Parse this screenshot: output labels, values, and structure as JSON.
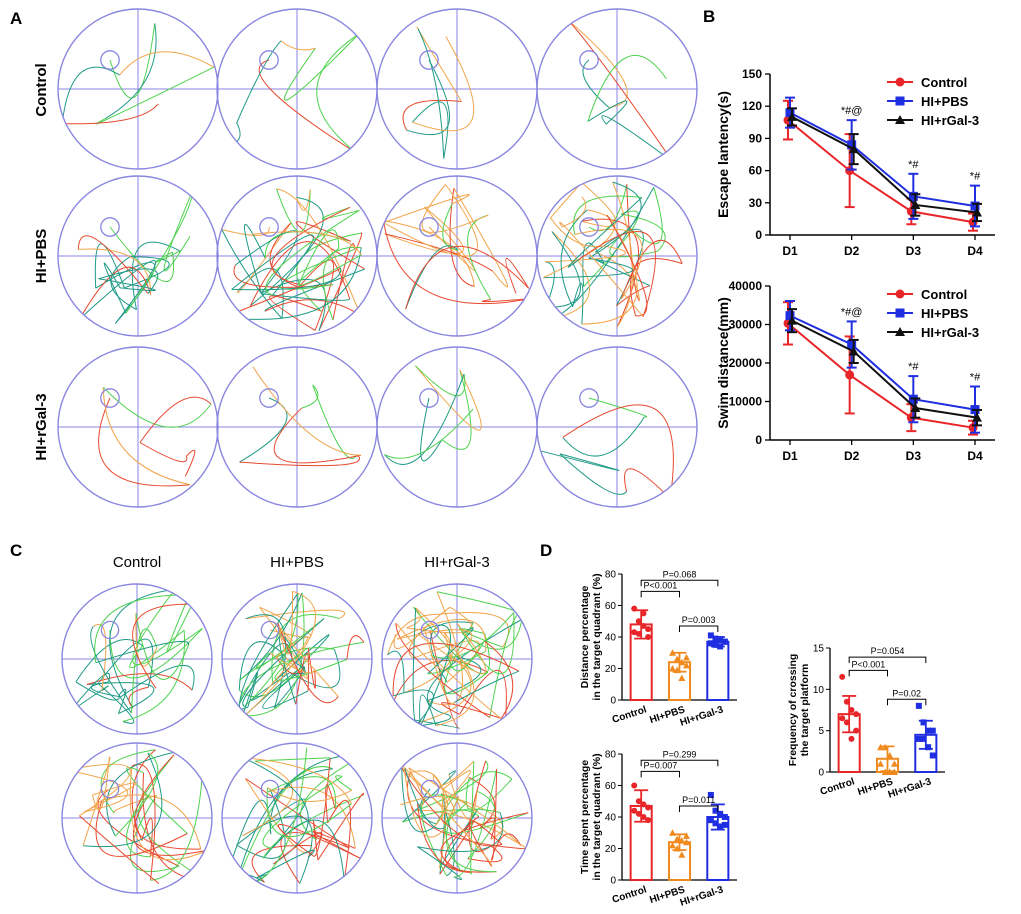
{
  "panels": {
    "A": {
      "label": "A",
      "row_labels": [
        "Control",
        "HI+PBS",
        "HI+rGal-3"
      ]
    },
    "C": {
      "label": "C",
      "col_labels": [
        "Control",
        "HI+PBS",
        "HI+rGal-3"
      ]
    },
    "B": {
      "label": "B"
    },
    "D": {
      "label": "D"
    }
  },
  "colors": {
    "control": "#e8262a",
    "pbs": "#1f2ee0",
    "rgal": "#111111",
    "pbs_bar": "#f08a1e",
    "pool_border": "#8a86e0",
    "quad_green": "#4ed24e",
    "quad_orange": "#f2a54a",
    "quad_teal": "#1f9a86",
    "quad_red": "#e8482f"
  },
  "chart_data": [
    {
      "id": "escape-latency",
      "type": "line",
      "categories": [
        "D1",
        "D2",
        "D3",
        "D4"
      ],
      "ylabel": "Escape lantency(s)",
      "ylim": [
        0,
        150
      ],
      "yticks": [
        "0",
        "30",
        "60",
        "90",
        "120",
        "150"
      ],
      "series": [
        {
          "name": "Control",
          "values": [
            107,
            60,
            22,
            12
          ],
          "err": [
            18,
            34,
            12,
            8
          ],
          "marker": "circle",
          "color_key": "control"
        },
        {
          "name": "HI+PBS",
          "values": [
            114,
            84,
            36,
            27
          ],
          "err": [
            14,
            23,
            21,
            19
          ],
          "marker": "square",
          "color_key": "pbs"
        },
        {
          "name": "HI+rGal-3",
          "values": [
            110,
            80,
            28,
            21
          ],
          "err": [
            8,
            14,
            10,
            8
          ],
          "marker": "triangle",
          "color_key": "rgal"
        }
      ],
      "annotations": [
        {
          "category": "D2",
          "text": "*#@"
        },
        {
          "category": "D3",
          "text": "*#"
        },
        {
          "category": "D4",
          "text": "*#"
        }
      ]
    },
    {
      "id": "swim-distance",
      "type": "line",
      "categories": [
        "D1",
        "D2",
        "D3",
        "D4"
      ],
      "ylabel": "Swim distance(mm)",
      "ylim": [
        0,
        40000
      ],
      "yticks": [
        "0",
        "10000",
        "20000",
        "30000",
        "40000"
      ],
      "series": [
        {
          "name": "Control",
          "values": [
            30300,
            16900,
            5800,
            3200
          ],
          "err": [
            5500,
            10000,
            3500,
            1800
          ],
          "marker": "circle",
          "color_key": "control"
        },
        {
          "name": "HI+PBS",
          "values": [
            32300,
            24800,
            10600,
            7900
          ],
          "err": [
            3800,
            6000,
            6000,
            6000
          ],
          "marker": "square",
          "color_key": "pbs"
        },
        {
          "name": "HI+rGal-3",
          "values": [
            31000,
            23000,
            8300,
            5800
          ],
          "err": [
            3000,
            3000,
            2500,
            2000
          ],
          "marker": "triangle",
          "color_key": "rgal"
        }
      ],
      "annotations": [
        {
          "category": "D2",
          "text": "*#@"
        },
        {
          "category": "D3",
          "text": "*#"
        },
        {
          "category": "D4",
          "text": "*#"
        }
      ]
    },
    {
      "id": "distance-percentage",
      "type": "bar",
      "categories": [
        "Control",
        "HI+PBS",
        "HI+rGal-3"
      ],
      "ylabel": [
        "Distance percentage",
        "in the target quadrant (%)"
      ],
      "ylim": [
        0,
        80
      ],
      "yticks": [
        "0",
        "20",
        "40",
        "60",
        "80"
      ],
      "values": [
        48,
        24,
        37
      ],
      "err": [
        9,
        6,
        3
      ],
      "points": [
        [
          58,
          50,
          47,
          45,
          43,
          42,
          55,
          40
        ],
        [
          30,
          26,
          24,
          22,
          20,
          19,
          14,
          27
        ],
        [
          41,
          39,
          38,
          37,
          36,
          35,
          34,
          37
        ]
      ],
      "comparisons": [
        {
          "from": 0,
          "to": 1,
          "text": "P<0.001",
          "level": 69
        },
        {
          "from": 0,
          "to": 2,
          "text": "P=0.068",
          "level": 76
        },
        {
          "from": 1,
          "to": 2,
          "text": "P=0.003",
          "level": 47
        }
      ]
    },
    {
      "id": "time-spent",
      "type": "bar",
      "categories": [
        "Control",
        "HI+PBS",
        "HI+rGal-3"
      ],
      "ylabel": [
        "Time spent percentage",
        "in the target quadrant (%)"
      ],
      "ylim": [
        0,
        80
      ],
      "yticks": [
        "0",
        "20",
        "40",
        "60",
        "80"
      ],
      "values": [
        47,
        24,
        40
      ],
      "err": [
        10,
        5,
        8
      ],
      "points": [
        [
          60,
          50,
          48,
          46,
          44,
          42,
          40,
          38
        ],
        [
          30,
          26,
          25,
          24,
          22,
          20,
          16,
          28
        ],
        [
          54,
          44,
          42,
          40,
          38,
          36,
          34,
          35
        ]
      ],
      "comparisons": [
        {
          "from": 0,
          "to": 1,
          "text": "P=0.007",
          "level": 69
        },
        {
          "from": 0,
          "to": 2,
          "text": "P=0.299",
          "level": 76
        },
        {
          "from": 1,
          "to": 2,
          "text": "P=0.011",
          "level": 47
        }
      ]
    },
    {
      "id": "crossing-frequency",
      "type": "bar",
      "categories": [
        "Control",
        "HI+PBS",
        "HI+rGal-3"
      ],
      "ylabel": [
        "Frequency of crossing",
        "the target platform"
      ],
      "ylim": [
        0,
        15
      ],
      "yticks": [
        "0",
        "5",
        "10",
        "15"
      ],
      "values": [
        7,
        1.6,
        4.5
      ],
      "err": [
        2.2,
        1.5,
        1.7
      ],
      "points": [
        [
          11.5,
          8.5,
          7.5,
          7,
          6.5,
          6,
          4,
          5
        ],
        [
          3,
          3,
          2,
          1,
          1,
          0,
          0,
          0
        ],
        [
          8,
          6,
          5,
          5,
          4,
          4,
          3,
          2
        ]
      ],
      "comparisons": [
        {
          "from": 0,
          "to": 1,
          "text": "P<0.001",
          "level": 12.3
        },
        {
          "from": 0,
          "to": 2,
          "text": "P=0.054",
          "level": 13.9
        },
        {
          "from": 1,
          "to": 2,
          "text": "P=0.02",
          "level": 8.8
        }
      ]
    }
  ]
}
